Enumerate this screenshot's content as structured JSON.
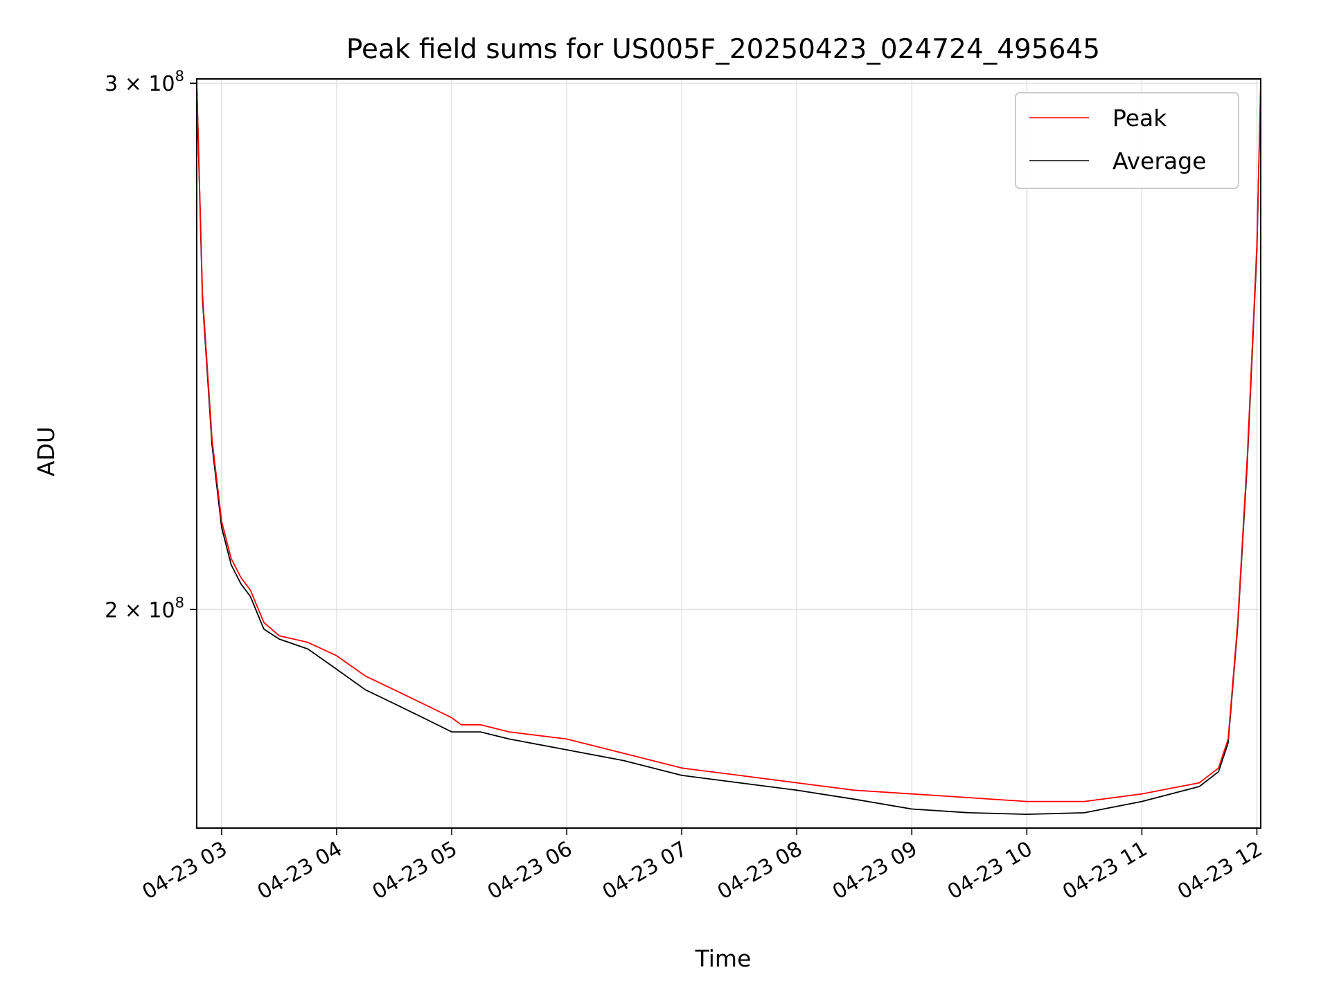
{
  "chart_data": {
    "type": "line",
    "title": "Peak field sums for US005F_20250423_024724_495645",
    "xlabel": "Time",
    "ylabel": "ADU",
    "y_scale": "log",
    "grid": true,
    "legend_position": "top-right",
    "xlim": [
      "2025-04-23 02:47",
      "2025-04-23 12:02"
    ],
    "ylim": [
      169000000,
      301000000
    ],
    "x_ticks": [
      "04-23 03",
      "04-23 04",
      "04-23 05",
      "04-23 06",
      "04-23 07",
      "04-23 08",
      "04-23 09",
      "04-23 10",
      "04-23 11",
      "04-23 12"
    ],
    "y_ticks": [
      {
        "value": 200000000,
        "mantissa": "2",
        "exponent": "8"
      },
      {
        "value": 300000000,
        "mantissa": "3",
        "exponent": "8"
      }
    ],
    "series": [
      {
        "name": "Peak",
        "color": "#ff0000",
        "x": [
          "2025-04-23 02:47",
          "2025-04-23 02:50",
          "2025-04-23 02:55",
          "2025-04-23 03:00",
          "2025-04-23 03:05",
          "2025-04-23 03:10",
          "2025-04-23 03:15",
          "2025-04-23 03:22",
          "2025-04-23 03:30",
          "2025-04-23 03:45",
          "2025-04-23 04:00",
          "2025-04-23 04:15",
          "2025-04-23 04:30",
          "2025-04-23 04:45",
          "2025-04-23 05:00",
          "2025-04-23 05:05",
          "2025-04-23 05:15",
          "2025-04-23 05:30",
          "2025-04-23 06:00",
          "2025-04-23 06:30",
          "2025-04-23 07:00",
          "2025-04-23 07:30",
          "2025-04-23 08:00",
          "2025-04-23 08:30",
          "2025-04-23 09:00",
          "2025-04-23 09:30",
          "2025-04-23 10:00",
          "2025-04-23 10:30",
          "2025-04-23 11:00",
          "2025-04-23 11:30",
          "2025-04-23 11:40",
          "2025-04-23 11:45",
          "2025-04-23 11:50",
          "2025-04-23 11:55",
          "2025-04-23 12:00",
          "2025-04-23 12:02"
        ],
        "values": [
          300000000,
          255000000,
          228000000,
          214000000,
          208000000,
          205000000,
          203000000,
          198000000,
          196000000,
          195000000,
          193000000,
          190000000,
          188000000,
          186000000,
          184000000,
          183000000,
          183000000,
          182000000,
          181000000,
          179000000,
          177000000,
          176000000,
          175000000,
          174000000,
          173500000,
          173000000,
          172500000,
          172500000,
          173500000,
          175000000,
          177000000,
          181000000,
          198000000,
          225000000,
          265000000,
          300000000
        ]
      },
      {
        "name": "Average",
        "color": "#000000",
        "x": [
          "2025-04-23 02:47",
          "2025-04-23 02:50",
          "2025-04-23 02:55",
          "2025-04-23 03:00",
          "2025-04-23 03:05",
          "2025-04-23 03:10",
          "2025-04-23 03:15",
          "2025-04-23 03:22",
          "2025-04-23 03:30",
          "2025-04-23 03:45",
          "2025-04-23 04:00",
          "2025-04-23 04:15",
          "2025-04-23 04:30",
          "2025-04-23 04:45",
          "2025-04-23 05:00",
          "2025-04-23 05:05",
          "2025-04-23 05:15",
          "2025-04-23 05:30",
          "2025-04-23 06:00",
          "2025-04-23 06:30",
          "2025-04-23 07:00",
          "2025-04-23 07:30",
          "2025-04-23 08:00",
          "2025-04-23 08:30",
          "2025-04-23 09:00",
          "2025-04-23 09:30",
          "2025-04-23 10:00",
          "2025-04-23 10:30",
          "2025-04-23 11:00",
          "2025-04-23 11:30",
          "2025-04-23 11:40",
          "2025-04-23 11:45",
          "2025-04-23 11:50",
          "2025-04-23 11:55",
          "2025-04-23 12:00",
          "2025-04-23 12:02"
        ],
        "values": [
          300000000,
          254000000,
          227000000,
          213000000,
          207000000,
          204000000,
          202000000,
          197000000,
          195500000,
          194000000,
          191000000,
          188000000,
          186000000,
          184000000,
          182000000,
          182000000,
          182000000,
          181000000,
          179500000,
          178000000,
          176000000,
          175000000,
          174000000,
          172800000,
          171500000,
          171000000,
          170800000,
          171000000,
          172500000,
          174500000,
          176500000,
          180500000,
          197500000,
          224000000,
          264000000,
          300000000
        ]
      }
    ]
  }
}
